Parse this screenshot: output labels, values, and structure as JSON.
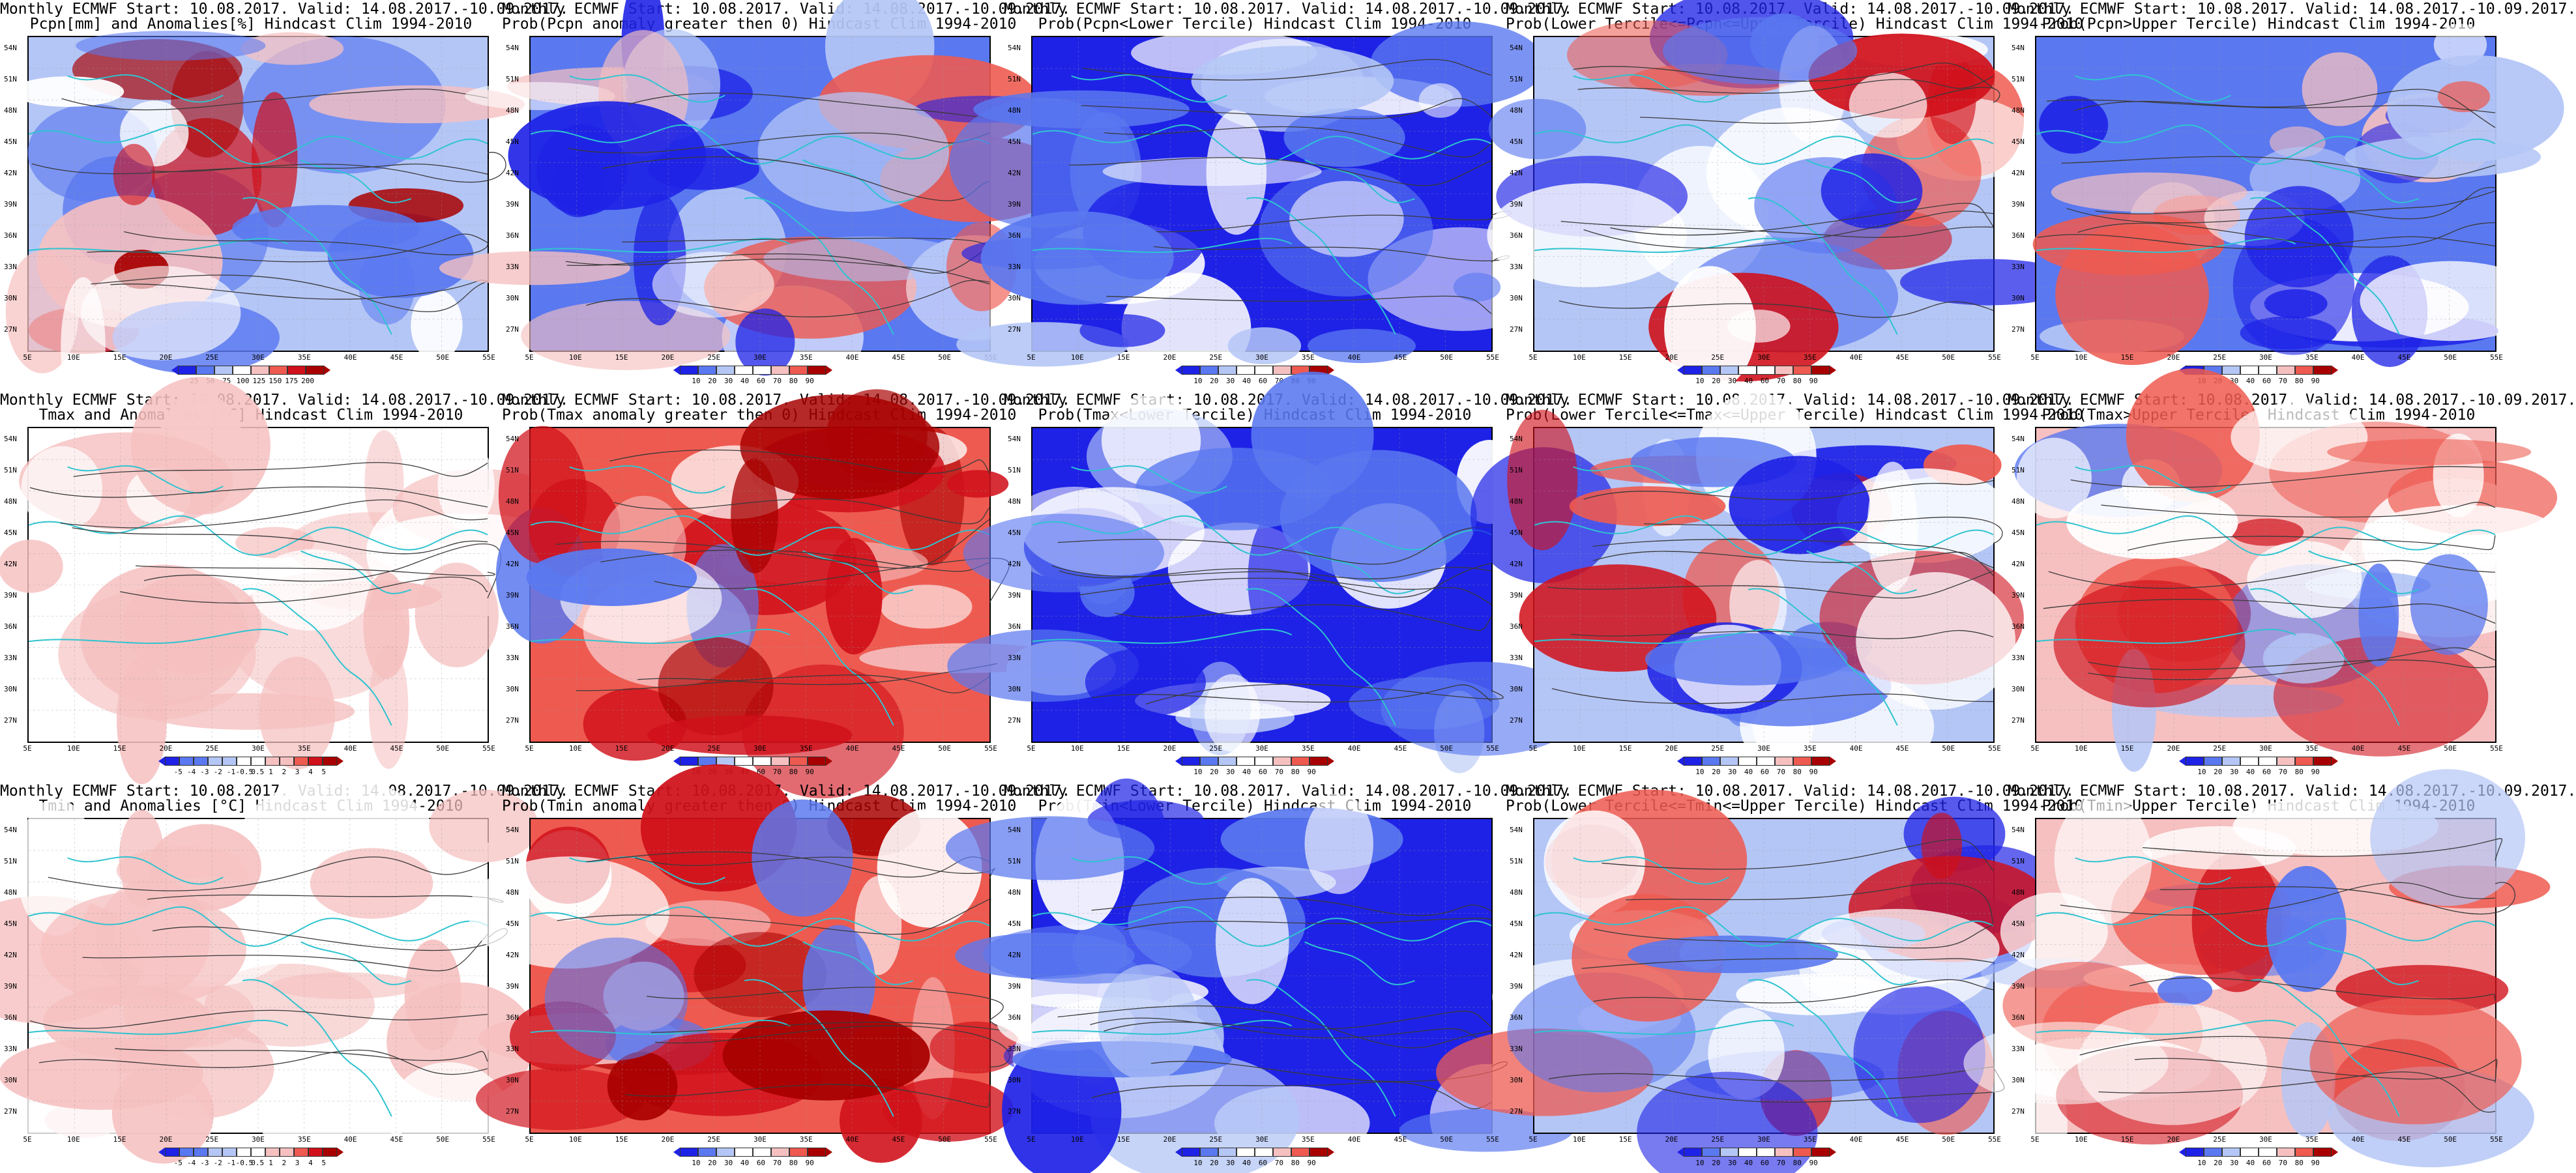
{
  "panel_titles": [
    [
      "Monthly ECMWF Start: 10.08.2017. Valid: 14.08.2017.-10.09.2017.",
      "Pcpn[mm] and Anomalies[%] Hindcast Clim 1994-2010"
    ],
    [
      "Monthly ECMWF Start: 10.08.2017. Valid: 14.08.2017.-10.09.2017.",
      "Prob(Pcpn anomaly greater then 0) Hindcast Clim 1994-2010"
    ],
    [
      "Monthly ECMWF Start: 10.08.2017. Valid: 14.08.2017.-10.09.2017.",
      "Prob(Pcpn<Lower Tercile) Hindcast Clim 1994-2010"
    ],
    [
      "Monthly ECMWF Start: 10.08.2017. Valid: 14.08.2017.-10.09.2017.",
      "Prob(Lower Tercile<=Pcpn<=Upper Tercile) Hindcast Clim 1994-2010"
    ],
    [
      "Monthly ECMWF Start: 10.08.2017. Valid: 14.08.2017.-10.09.2017.",
      "Prob(Pcpn>Upper Tercile) Hindcast Clim 1994-2010"
    ],
    [
      "Monthly ECMWF Start: 10.08.2017. Valid: 14.08.2017.-10.09.2017.",
      "Tmax and Anomalies [°C] Hindcast Clim 1994-2010"
    ],
    [
      "Monthly ECMWF Start: 10.08.2017. Valid: 14.08.2017.-10.09.2017.",
      "Prob(Tmax anomaly greater then 0) Hindcast Clim 1994-2010"
    ],
    [
      "Monthly ECMWF Start: 10.08.2017. Valid: 14.08.2017.-10.09.2017.",
      "Prob(Tmax<Lower Tercile) Hindcast Clim 1994-2010"
    ],
    [
      "Monthly ECMWF Start: 10.08.2017. Valid: 14.08.2017.-10.09.2017.",
      "Prob(Lower Tercile<=Tmax<=Upper Tercile) Hindcast Clim 1994-2010"
    ],
    [
      "Monthly ECMWF Start: 10.08.2017. Valid: 14.08.2017.-10.09.2017.",
      "Prob(Tmax>Upper Tercile) Hindcast Clim 1994-2010"
    ],
    [
      "Monthly ECMWF Start: 10.08.2017. Valid: 14.08.2017.-10.09.2017.",
      "Tmin and Anomalies [°C] Hindcast Clim 1994-2010"
    ],
    [
      "Monthly ECMWF Start: 10.08.2017. Valid: 14.08.2017.-10.09.2017.",
      "Prob(Tmin anomaly greater then 0) Hindcast Clim 1994-2010"
    ],
    [
      "Monthly ECMWF Start: 10.08.2017. Valid: 14.08.2017.-10.09.2017.",
      "Prob(Tmin<Lower Tercile) Hindcast Clim 1994-2010"
    ],
    [
      "Monthly ECMWF Start: 10.08.2017. Valid: 14.08.2017.-10.09.2017.",
      "Prob(Lower Tercile<=Tmin<=Upper Tercile) Hindcast Clim 1994-2010"
    ],
    [
      "Monthly ECMWF Start: 10.08.2017. Valid: 14.08.2017.-10.09.2017.",
      "Prob(Tmin>Upper Tercile) Hindcast Clim 1994-2010"
    ]
  ],
  "lat_labels": [
    "54N",
    "51N",
    "48N",
    "45N",
    "42N",
    "39N",
    "36N",
    "33N",
    "30N",
    "27N"
  ],
  "lon_labels": [
    "5E",
    "10E",
    "15E",
    "20E",
    "25E",
    "30E",
    "35E",
    "40E",
    "45E",
    "50E",
    "55E"
  ],
  "scale_pcpn_anom": [
    "25",
    "50",
    "75",
    "100",
    "125",
    "150",
    "175",
    "200"
  ],
  "scale_prob": [
    "10",
    "20",
    "30",
    "40",
    "60",
    "70",
    "80",
    "90"
  ],
  "scale_temp_anom": [
    "-5",
    "-4",
    "-3",
    "-2",
    "-1",
    "-0.5",
    "0.5",
    "1",
    "2",
    "3",
    "4",
    "5"
  ],
  "scheme_colors": {
    "strong_blue": "#1e22e6",
    "mid_blue": "#5a78f0",
    "light_blue": "#b4c6f6",
    "white": "#ffffff",
    "light_red": "#f6c0c0",
    "mid_red": "#ee5a50",
    "strong_red": "#d0101a",
    "dark_red": "#a80000",
    "coast": "#2ec4d0",
    "contour": "#3a3a3a"
  },
  "panel_styles": [
    {
      "scheme": "pcpn",
      "scale": "scale_pcpn_anom"
    },
    {
      "scheme": "prob_blue",
      "scale": "scale_prob"
    },
    {
      "scheme": "deep_blue",
      "scale": "scale_prob"
    },
    {
      "scheme": "mixed",
      "scale": "scale_prob"
    },
    {
      "scheme": "prob_blue",
      "scale": "scale_prob"
    },
    {
      "scheme": "pale_red",
      "scale": "scale_temp_anom"
    },
    {
      "scheme": "red",
      "scale": "scale_prob"
    },
    {
      "scheme": "deep_blue",
      "scale": "scale_prob"
    },
    {
      "scheme": "mixed",
      "scale": "scale_prob"
    },
    {
      "scheme": "red_mixed",
      "scale": "scale_prob"
    },
    {
      "scheme": "pale_red",
      "scale": "scale_temp_anom"
    },
    {
      "scheme": "red",
      "scale": "scale_prob"
    },
    {
      "scheme": "deep_blue",
      "scale": "scale_prob"
    },
    {
      "scheme": "mixed",
      "scale": "scale_prob"
    },
    {
      "scheme": "red_mixed",
      "scale": "scale_prob"
    }
  ]
}
